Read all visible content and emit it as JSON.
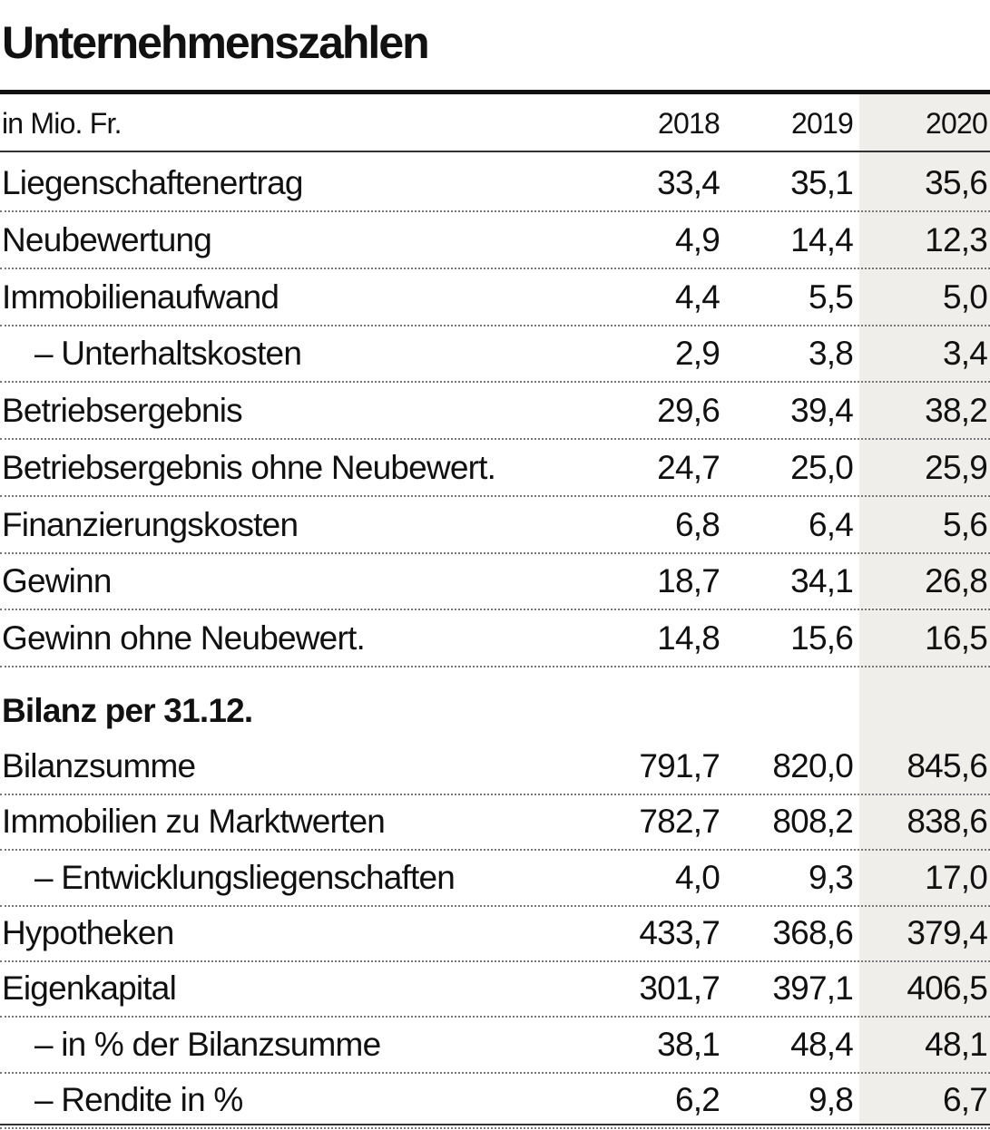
{
  "title": "Unternehmenszahlen",
  "table": {
    "unit": "in Mio. Fr.",
    "years": [
      "2018",
      "2019",
      "2020"
    ],
    "rows": [
      {
        "label": "Liegenschaftenertrag",
        "values": [
          "33,4",
          "35,1",
          "35,6"
        ]
      },
      {
        "label": "Neubewertung",
        "values": [
          "4,9",
          "14,4",
          "12,3"
        ]
      },
      {
        "label": "Immobilienaufwand",
        "values": [
          "4,4",
          "5,5",
          "5,0"
        ]
      },
      {
        "label": "– Unterhaltskosten",
        "values": [
          "2,9",
          "3,8",
          "3,4"
        ]
      },
      {
        "label": "Betriebsergebnis",
        "values": [
          "29,6",
          "39,4",
          "38,2"
        ]
      },
      {
        "label": "Betriebsergebnis ohne Neubewert.",
        "values": [
          "24,7",
          "25,0",
          "25,9"
        ]
      },
      {
        "label": "Finanzierungskosten",
        "values": [
          "6,8",
          "6,4",
          "5,6"
        ]
      },
      {
        "label": "Gewinn",
        "values": [
          "18,7",
          "34,1",
          "26,8"
        ]
      },
      {
        "label": "Gewinn ohne Neubewert.",
        "values": [
          "14,8",
          "15,6",
          "16,5"
        ]
      }
    ],
    "section": {
      "title": "Bilanz per 31.12.",
      "rows": [
        {
          "label": "Bilanzsumme",
          "values": [
            "791,7",
            "820,0",
            "845,6"
          ]
        },
        {
          "label": "Immobilien zu Marktwerten",
          "values": [
            "782,7",
            "808,2",
            "838,6"
          ]
        },
        {
          "label": "– Entwicklungsliegenschaften",
          "values": [
            "4,0",
            "9,3",
            "17,0"
          ]
        },
        {
          "label": "Hypotheken",
          "values": [
            "433,7",
            "368,6",
            "379,4"
          ]
        },
        {
          "label": "Eigenkapital",
          "values": [
            "301,7",
            "397,1",
            "406,5"
          ]
        },
        {
          "label": "– in % der Bilanzsumme",
          "values": [
            "38,1",
            "48,4",
            "48,1"
          ]
        },
        {
          "label": "– Rendite in %",
          "values": [
            "6,2",
            "9,8",
            "6,7"
          ]
        }
      ]
    }
  }
}
